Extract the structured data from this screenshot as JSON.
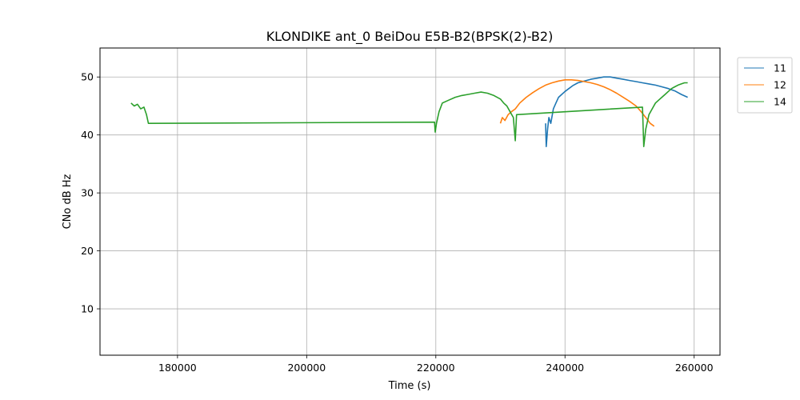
{
  "chart_data": {
    "type": "line",
    "title": "KLONDIKE ant_0 BeiDou E5B-B2(BPSK(2)-B2)",
    "xlabel": "Time (s)",
    "ylabel": "CNo dB Hz",
    "xlim": [
      168000,
      264000
    ],
    "ylim": [
      2,
      55
    ],
    "xticks": [
      180000,
      200000,
      220000,
      240000,
      260000
    ],
    "yticks": [
      10,
      20,
      30,
      40,
      50
    ],
    "grid": true,
    "legend_position": "outside-top-right",
    "series": [
      {
        "name": "11",
        "color": "#1f77b4",
        "x": [
          237000,
          237100,
          237300,
          237500,
          237800,
          238200,
          238600,
          239000,
          239500,
          240000,
          240600,
          241200,
          242000,
          243000,
          244000,
          245000,
          246000,
          247000,
          248000,
          249000,
          250000,
          251000,
          252000,
          253000,
          254000,
          255000,
          256000,
          257000,
          258000,
          259000
        ],
        "y": [
          42,
          38,
          41,
          43,
          42,
          44.5,
          45.5,
          46.5,
          47,
          47.5,
          48,
          48.5,
          49,
          49.3,
          49.6,
          49.8,
          50,
          50,
          49.8,
          49.6,
          49.4,
          49.2,
          49,
          48.8,
          48.6,
          48.3,
          48,
          47.6,
          47,
          46.5
        ]
      },
      {
        "name": "12",
        "color": "#ff7f0e",
        "x": [
          230000,
          230300,
          230700,
          231200,
          231700,
          232300,
          233000,
          234000,
          235000,
          236000,
          237000,
          238000,
          239000,
          240000,
          241000,
          242000,
          243000,
          244000,
          245000,
          246000,
          247000,
          248000,
          249000,
          250000,
          251000,
          251800,
          252500,
          253200,
          253800
        ],
        "y": [
          42,
          43,
          42.5,
          43.5,
          44,
          44.5,
          45.5,
          46.5,
          47.3,
          48,
          48.6,
          49,
          49.3,
          49.5,
          49.5,
          49.4,
          49.2,
          49,
          48.7,
          48.3,
          47.8,
          47.2,
          46.5,
          45.8,
          45,
          44,
          43,
          42,
          41.5
        ]
      },
      {
        "name": "14",
        "color": "#2ca02c",
        "x": [
          172800,
          173300,
          173800,
          174300,
          174800,
          175200,
          175500,
          219800,
          219900,
          220100,
          220500,
          221000,
          222000,
          223000,
          224000,
          225000,
          226000,
          227000,
          228000,
          229000,
          230000,
          230500,
          231000,
          231500,
          232000,
          232300,
          232500,
          252000,
          252200,
          252500,
          253000,
          253500,
          254000,
          254500,
          255000,
          255500,
          256000,
          256500,
          257000,
          257500,
          258000,
          258500,
          259000
        ],
        "y": [
          45.5,
          45,
          45.3,
          44.5,
          44.8,
          43.5,
          42,
          42.2,
          40.5,
          42,
          44,
          45.5,
          46,
          46.5,
          46.8,
          47,
          47.2,
          47.4,
          47.2,
          46.8,
          46.2,
          45.5,
          45,
          44,
          43,
          39,
          43.5,
          44.8,
          38,
          41,
          43.5,
          44.5,
          45.5,
          46,
          46.5,
          47,
          47.5,
          48,
          48.3,
          48.6,
          48.8,
          49,
          49
        ]
      }
    ]
  }
}
